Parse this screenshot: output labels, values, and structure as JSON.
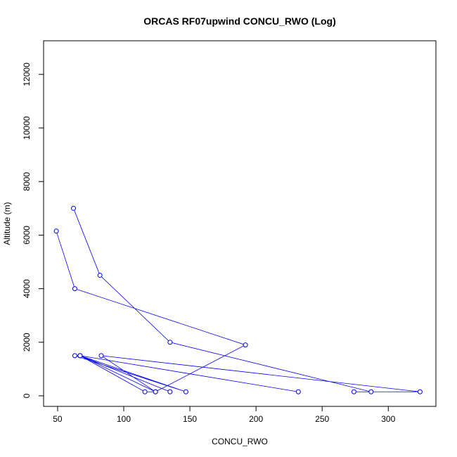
{
  "chart_data": {
    "type": "line",
    "title": "ORCAS RF07upwind CONCU_RWO (Log)",
    "xlabel": "CONCU_RWO",
    "ylabel": "Altitude (m)",
    "color": "#0000ff",
    "markers": true,
    "x": [
      62,
      82,
      135,
      287,
      274,
      324,
      83,
      124,
      67,
      232,
      67,
      147,
      63,
      67,
      135,
      67,
      116,
      124,
      192,
      63,
      49
    ],
    "values": [
      7000,
      4500,
      2000,
      150,
      150,
      150,
      1500,
      150,
      1500,
      150,
      1500,
      150,
      1500,
      1500,
      150,
      1500,
      150,
      150,
      1900,
      4000,
      6150
    ],
    "xlim": [
      39.4,
      336
    ],
    "ylim": [
      -394,
      13255
    ],
    "xticks": [
      50,
      100,
      150,
      200,
      250,
      300
    ],
    "yticks": [
      0,
      2000,
      4000,
      6000,
      8000,
      10000,
      12000
    ]
  }
}
